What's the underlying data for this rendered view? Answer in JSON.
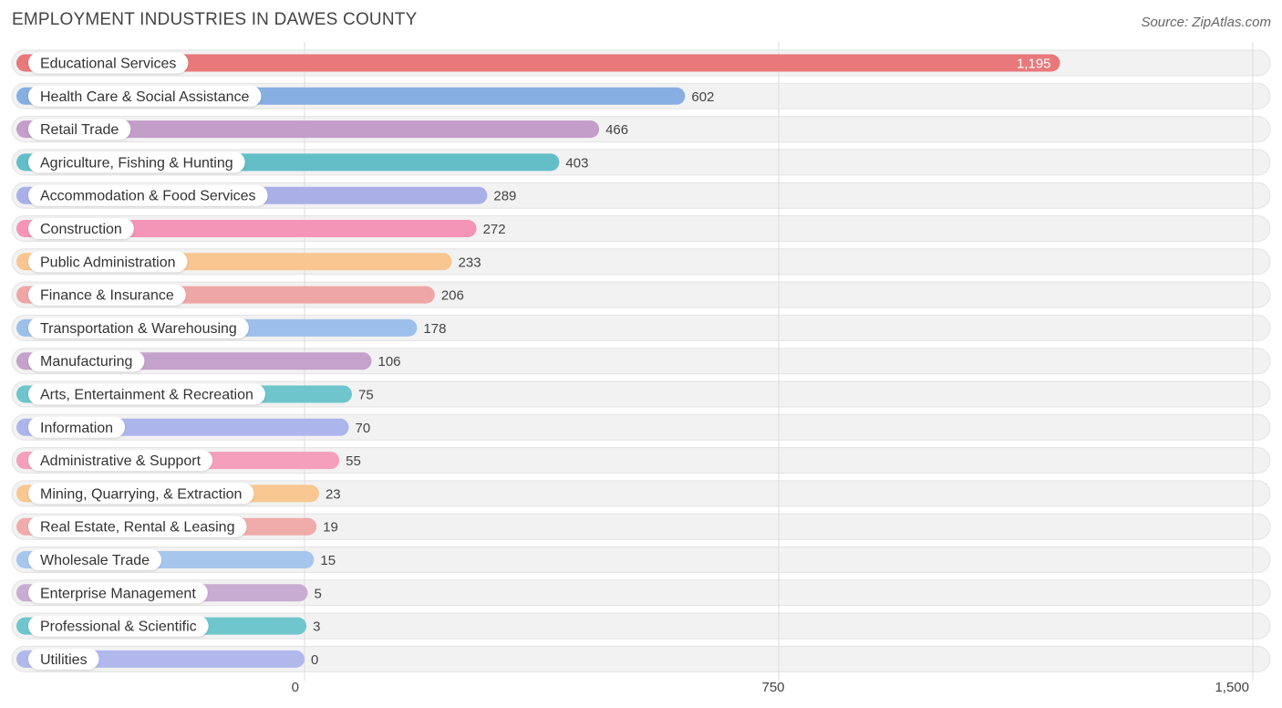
{
  "title": "EMPLOYMENT INDUSTRIES IN DAWES COUNTY",
  "source": "Source: ZipAtlas.com",
  "chart_data": {
    "type": "bar",
    "orientation": "horizontal",
    "title": "EMPLOYMENT INDUSTRIES IN DAWES COUNTY",
    "xlabel": "",
    "ylabel": "",
    "xlim": [
      0,
      1500
    ],
    "x_ticks": [
      0,
      750,
      1500
    ],
    "x_tick_labels": [
      "0",
      "750",
      "1,500"
    ],
    "grid": true,
    "categories": [
      "Educational Services",
      "Health Care & Social Assistance",
      "Retail Trade",
      "Agriculture, Fishing & Hunting",
      "Accommodation & Food Services",
      "Construction",
      "Public Administration",
      "Finance & Insurance",
      "Transportation & Warehousing",
      "Manufacturing",
      "Arts, Entertainment & Recreation",
      "Information",
      "Administrative & Support",
      "Mining, Quarrying, & Extraction",
      "Real Estate, Rental & Leasing",
      "Wholesale Trade",
      "Enterprise Management",
      "Professional & Scientific",
      "Utilities"
    ],
    "values": [
      1195,
      602,
      466,
      403,
      289,
      272,
      233,
      206,
      178,
      106,
      75,
      70,
      55,
      23,
      19,
      15,
      5,
      3,
      0
    ],
    "value_labels": [
      "1,195",
      "602",
      "466",
      "403",
      "289",
      "272",
      "233",
      "206",
      "178",
      "106",
      "75",
      "70",
      "55",
      "23",
      "19",
      "15",
      "5",
      "3",
      "0"
    ],
    "colors": [
      "#e8787a",
      "#86aee3",
      "#c39ec9",
      "#63bec8",
      "#a9b0e8",
      "#f494b6",
      "#f9c692",
      "#efa7a6",
      "#9cc0ea",
      "#c4a2cb",
      "#6ec5cb",
      "#adb6ec",
      "#f59fbd",
      "#f8c792",
      "#f0abab",
      "#a6c6ee",
      "#c9acd2",
      "#6fc6cc",
      "#b1b8ec"
    ]
  }
}
